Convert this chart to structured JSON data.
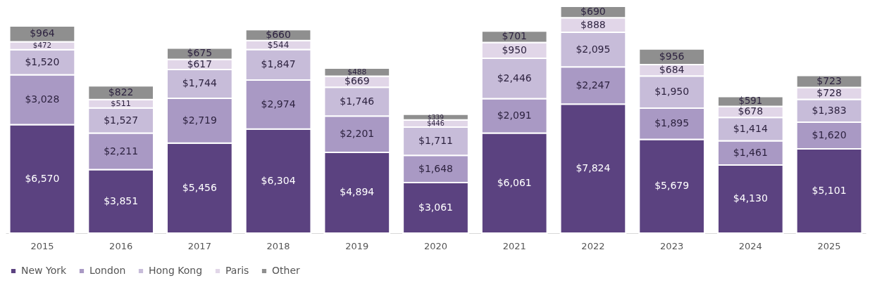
{
  "chart_data": {
    "type": "bar",
    "stacked": true,
    "legend": "bottom",
    "grid": false,
    "categories": [
      "2015",
      "2016",
      "2017",
      "2018",
      "2019",
      "2020",
      "2021",
      "2022",
      "2023",
      "2024",
      "2025"
    ],
    "series": [
      {
        "name": "New York",
        "color": "#5b4280",
        "values": [
          6570,
          3851,
          5456,
          6304,
          4894,
          3061,
          6061,
          7824,
          5679,
          4130,
          5101
        ],
        "value_labels": [
          "$6,570",
          "$3,851",
          "$5,456",
          "$6,304",
          "$4,894",
          "$3,061",
          "$6,061",
          "$7,824",
          "$5,679",
          "$4,130",
          "$5,101"
        ]
      },
      {
        "name": "London",
        "color": "#a999c4",
        "values": [
          3028,
          2211,
          2719,
          2974,
          2201,
          1648,
          2091,
          2247,
          1895,
          1461,
          1620
        ],
        "value_labels": [
          "$3,028",
          "$2,211",
          "$2,719",
          "$2,974",
          "$2,201",
          "$1,648",
          "$2,091",
          "$2,247",
          "$1,895",
          "$1,461",
          "$1,620"
        ]
      },
      {
        "name": "Hong Kong",
        "color": "#c7bcd9",
        "values": [
          1520,
          1527,
          1744,
          1847,
          1746,
          1711,
          2446,
          2095,
          1950,
          1414,
          1383
        ],
        "value_labels": [
          "$1,520",
          "$1,527",
          "$1,744",
          "$1,847",
          "$1,746",
          "$1,711",
          "$2,446",
          "$2,095",
          "$1,950",
          "$1,414",
          "$1,383"
        ]
      },
      {
        "name": "Paris",
        "color": "#e1d6e8",
        "values": [
          472,
          511,
          617,
          544,
          669,
          446,
          950,
          888,
          684,
          678,
          728
        ],
        "value_labels": [
          "$472",
          "$511",
          "$617",
          "$544",
          "$669",
          "$446",
          "$950",
          "$888",
          "$684",
          "$678",
          "$728"
        ]
      },
      {
        "name": "Other",
        "color": "#8f8f8f",
        "values": [
          964,
          822,
          675,
          660,
          488,
          339,
          701,
          690,
          956,
          591,
          723
        ],
        "value_labels": [
          "$964",
          "$822",
          "$675",
          "$660",
          "$488",
          "$339",
          "$701",
          "$690",
          "$956",
          "$591",
          "$723"
        ]
      }
    ]
  }
}
